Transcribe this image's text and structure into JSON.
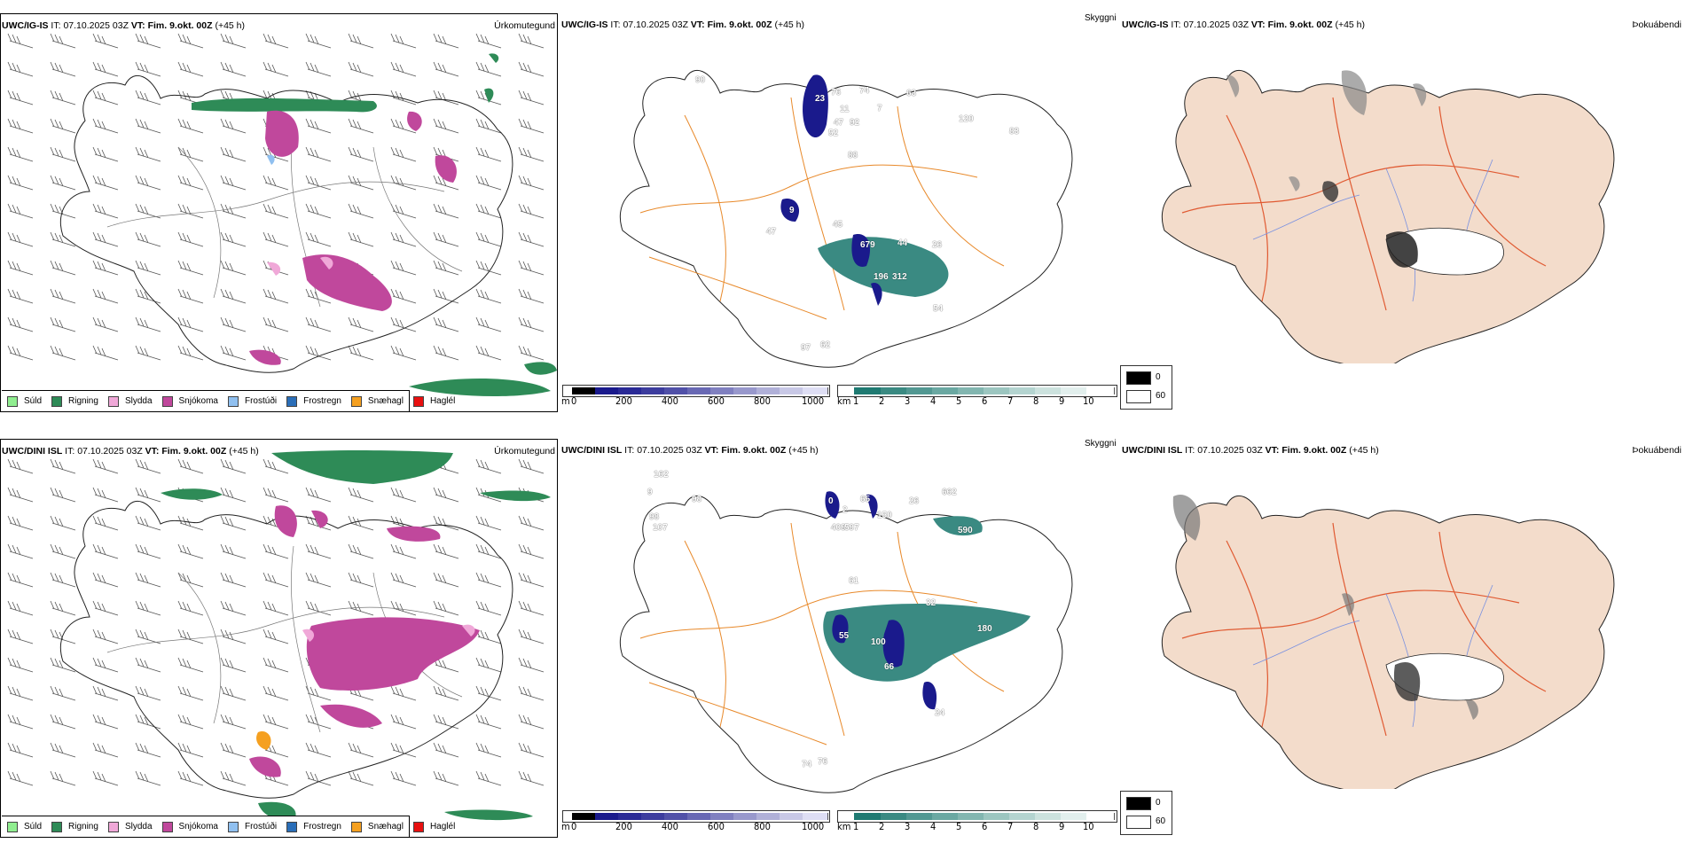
{
  "rows": [
    {
      "model": "UWC/IG-IS",
      "it_label": "IT:",
      "it_value": "07.10.2025 03Z",
      "vt_label": "VT:",
      "vt_value": "Fim. 9.okt. 00Z",
      "lead": "(+45 h)",
      "precip_panel_title": "Úrkomutegund",
      "visibility_panel_title": "Skyggni",
      "fog_panel_title": "Þokuábendi",
      "cloud_base_labels": [
        "90",
        "23",
        "76",
        "74",
        "7",
        "63",
        "11",
        "47",
        "92",
        "52",
        "88",
        "120",
        "83",
        "47",
        "45",
        "44",
        "679",
        "196",
        "312",
        "54",
        "9",
        "97",
        "62",
        "26"
      ]
    },
    {
      "model": "UWC/DINI ISL",
      "it_label": "IT:",
      "it_value": "07.10.2025 03Z",
      "vt_label": "VT:",
      "vt_value": "Fim. 9.okt. 00Z",
      "lead": "(+45 h)",
      "precip_panel_title": "Úrkomutegund",
      "visibility_panel_title": "Skyggni",
      "fog_panel_title": "Þokuábendi",
      "cloud_base_labels": [
        "162",
        "9",
        "98",
        "98",
        "107",
        "0",
        "65",
        "2",
        "150",
        "26",
        "662",
        "409",
        "597",
        "590",
        "32",
        "180",
        "55",
        "100",
        "66",
        "24",
        "74",
        "76",
        "61"
      ]
    }
  ],
  "precip_legend": [
    {
      "label": "Súld",
      "color": "#90ee90"
    },
    {
      "label": "Rigning",
      "color": "#2e8b57"
    },
    {
      "label": "Slydda",
      "color": "#f0a8d8"
    },
    {
      "label": "Snjókoma",
      "color": "#c0489c"
    },
    {
      "label": "Frostúði",
      "color": "#90c0f0"
    },
    {
      "label": "Frostregn",
      "color": "#2a6eb8"
    },
    {
      "label": "Snæhagl",
      "color": "#f5a020"
    },
    {
      "label": "Haglél",
      "color": "#e81010"
    }
  ],
  "cloud_base_bar": {
    "unit": "m",
    "ticks": [
      "0",
      "200",
      "400",
      "600",
      "800",
      "1000"
    ],
    "colors": [
      "#000000",
      "#1a1a8c",
      "#2a2a96",
      "#3c3c9e",
      "#5050a8",
      "#6868b4",
      "#8080c0",
      "#9898cc",
      "#b0b0d8",
      "#c8c8e6",
      "#dedef4"
    ]
  },
  "visibility_bar": {
    "unit": "km",
    "ticks": [
      "1",
      "2",
      "3",
      "4",
      "5",
      "6",
      "7",
      "8",
      "9",
      "10"
    ],
    "colors": [
      "#1f7a72",
      "#3a8a82",
      "#529892",
      "#6aa8a2",
      "#82b6b0",
      "#9cc6c0",
      "#b4d4d0",
      "#cce2de",
      "#e2efed",
      "#ffffff"
    ]
  },
  "fog_legend": [
    {
      "label": "0",
      "color": "#000000"
    },
    {
      "label": "60",
      "color": "#ffffff"
    }
  ],
  "colors": {
    "rain": "#2e8b57",
    "snow": "#c0489c",
    "sleet": "#f0a8d8",
    "roads": "#e8892a",
    "land_fog": "#f3dccb",
    "fog_roads": "#e05a32",
    "rivers": "#7890e0",
    "low_cloud": "#1a1a8c",
    "vis_teal": "#3a8a82"
  }
}
